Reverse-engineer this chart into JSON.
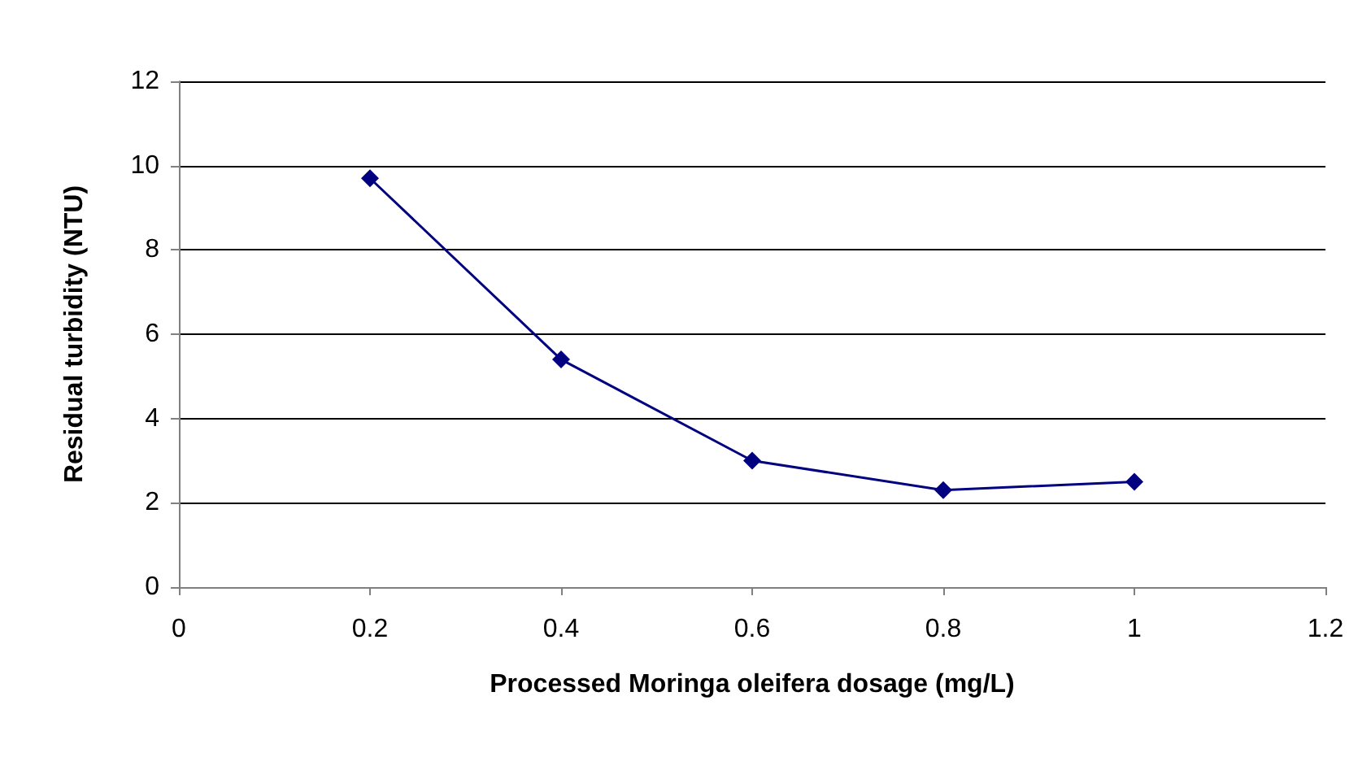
{
  "chart_data": {
    "type": "line",
    "xlabel": "Processed Moringa oleifera dosage (mg/L)",
    "ylabel": "Residual turbidity (NTU)",
    "x": [
      0.2,
      0.4,
      0.6,
      0.8,
      1
    ],
    "series": [
      {
        "color": "#000080",
        "values": [
          9.7,
          5.4,
          3.0,
          2.3,
          2.5
        ]
      }
    ],
    "xlim": [
      0,
      1.2
    ],
    "xticks": [
      0,
      0.2,
      0.4,
      0.6,
      0.8,
      1,
      1.2
    ],
    "ylim": [
      0,
      12
    ],
    "yticks": [
      0,
      2,
      4,
      6,
      8,
      10,
      12
    ],
    "grid": "y",
    "marker": "diamond",
    "line_style": "solid"
  }
}
